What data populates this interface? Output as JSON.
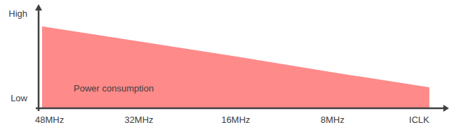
{
  "chart_data": {
    "type": "area",
    "categories": [
      "48MHz",
      "32MHz",
      "16MHz",
      "8MHz",
      "ICLK"
    ],
    "values": [
      8.2,
      6.7,
      5.2,
      3.6,
      2.1
    ],
    "color": "#ff8a8a",
    "annotation": "Power consumption",
    "ylim": [
      0,
      10
    ],
    "yticks": [
      {
        "value": 1,
        "label": "Low"
      },
      {
        "value": 9.5,
        "label": "High"
      }
    ],
    "grid": false
  }
}
